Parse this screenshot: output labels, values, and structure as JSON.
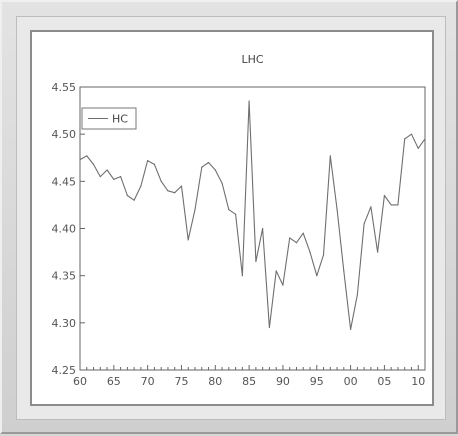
{
  "chart_data": {
    "type": "line",
    "title": "LHC",
    "xlabel": "",
    "ylabel": "",
    "x_tick_labels": [
      "60",
      "65",
      "70",
      "75",
      "80",
      "85",
      "90",
      "95",
      "00",
      "05",
      "10"
    ],
    "y_tick_labels": [
      "4.25",
      "4.30",
      "4.35",
      "4.40",
      "4.45",
      "4.50",
      "4.55"
    ],
    "xlim": [
      1960,
      2011
    ],
    "ylim": [
      4.25,
      4.55
    ],
    "grid": false,
    "legend_position": "top-left",
    "series": [
      {
        "name": "HC",
        "color": "#6f6f6f",
        "x": [
          1960,
          1961,
          1962,
          1963,
          1964,
          1965,
          1966,
          1967,
          1968,
          1969,
          1970,
          1971,
          1972,
          1973,
          1974,
          1975,
          1976,
          1977,
          1978,
          1979,
          1980,
          1981,
          1982,
          1983,
          1984,
          1985,
          1986,
          1987,
          1988,
          1989,
          1990,
          1991,
          1992,
          1993,
          1994,
          1995,
          1996,
          1997,
          1998,
          1999,
          2000,
          2001,
          2002,
          2003,
          2004,
          2005,
          2006,
          2007,
          2008,
          2009,
          2010,
          2011
        ],
        "values": [
          4.473,
          4.477,
          4.468,
          4.455,
          4.462,
          4.452,
          4.455,
          4.435,
          4.43,
          4.445,
          4.472,
          4.468,
          4.45,
          4.44,
          4.438,
          4.445,
          4.388,
          4.42,
          4.465,
          4.47,
          4.462,
          4.448,
          4.42,
          4.415,
          4.35,
          4.535,
          4.365,
          4.4,
          4.295,
          4.355,
          4.34,
          4.39,
          4.385,
          4.395,
          4.375,
          4.35,
          4.372,
          4.477,
          4.42,
          4.355,
          4.293,
          4.33,
          4.405,
          4.423,
          4.375,
          4.435,
          4.425,
          4.425,
          4.495,
          4.5,
          4.485,
          4.495
        ]
      }
    ]
  }
}
